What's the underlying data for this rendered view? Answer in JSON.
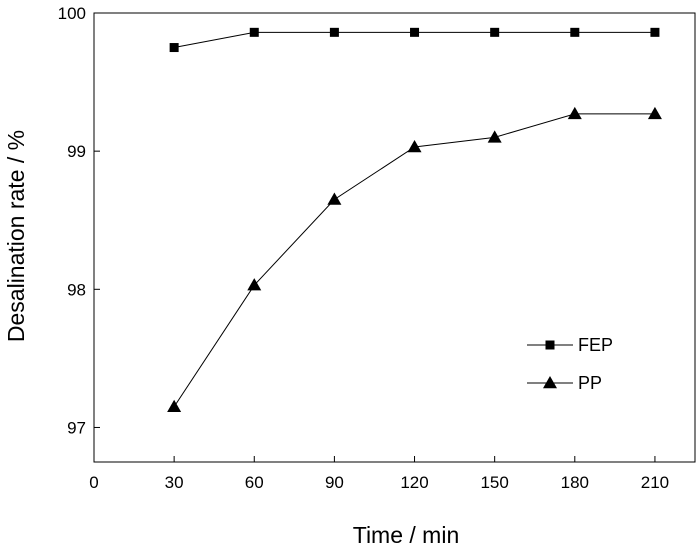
{
  "chart_data": {
    "type": "line",
    "title": "",
    "xlabel": "Time / min",
    "ylabel": "Desalination rate / %",
    "xlim": [
      0,
      225
    ],
    "ylim": [
      96.75,
      100
    ],
    "x_ticks": [
      0,
      30,
      60,
      90,
      120,
      150,
      180,
      210
    ],
    "y_ticks": [
      97,
      98,
      99,
      100
    ],
    "x_tick_labels": [
      "0",
      "30",
      "60",
      "90",
      "120",
      "150",
      "180",
      "210"
    ],
    "y_tick_labels": [
      "97",
      "98",
      "99",
      "100"
    ],
    "grid": false,
    "legend_position": "right",
    "x": [
      30,
      60,
      90,
      120,
      150,
      180,
      210
    ],
    "series": [
      {
        "name": "FEP",
        "marker": "square",
        "values": [
          99.75,
          99.86,
          99.86,
          99.86,
          99.86,
          99.86,
          99.86
        ]
      },
      {
        "name": "PP",
        "marker": "triangle",
        "values": [
          97.15,
          98.03,
          98.65,
          99.03,
          99.1,
          99.27,
          99.27
        ]
      }
    ]
  }
}
